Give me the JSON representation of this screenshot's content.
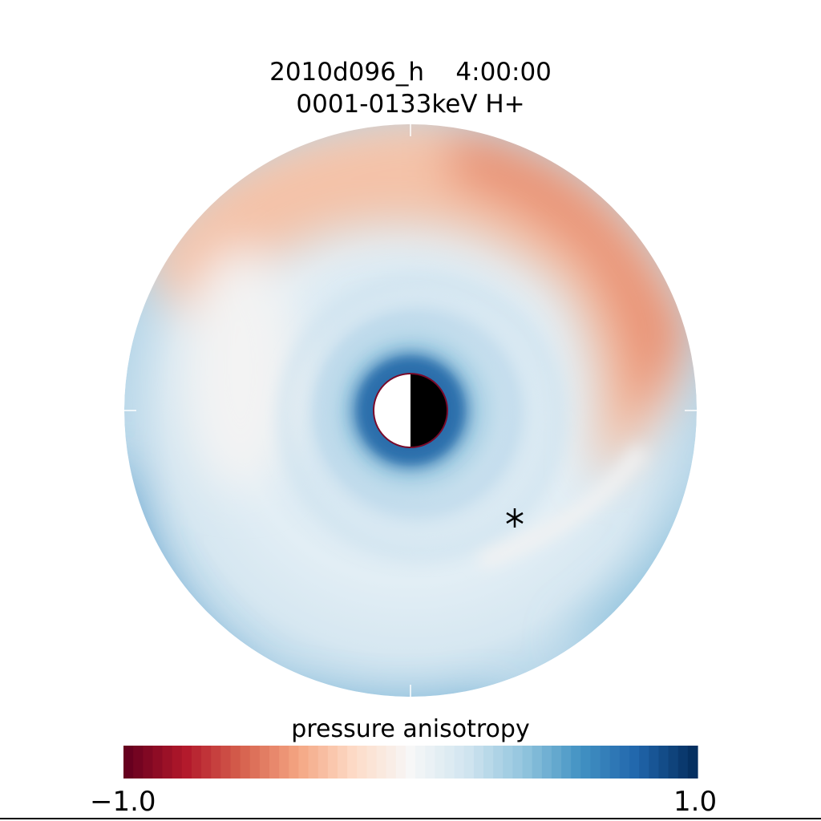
{
  "chart_data": {
    "type": "heatmap",
    "projection": "polar",
    "title_line1": "2010d096_h    4:00:00",
    "title_line2": "0001-0133keV H+",
    "colorbar": {
      "label": "pressure anisotropy",
      "min_label": "−1.0",
      "max_label": "1.0",
      "range": [
        -1.0,
        1.0
      ],
      "colormap": "RdBu",
      "levels": 59
    },
    "regions": [
      {
        "location": "dusk/top-right sector",
        "value_approx": -0.35
      },
      {
        "location": "top-left sector",
        "value_approx": -0.15
      },
      {
        "location": "inner ring",
        "value_approx": 0.2
      },
      {
        "location": "near Earth",
        "value_approx": 0.6
      },
      {
        "location": "bottom-left edge",
        "value_approx": 0.65
      }
    ],
    "marker": "asterisk",
    "earth": {
      "day_side": "left",
      "night_side": "right"
    }
  },
  "colors": {
    "dark_red": "#67001f",
    "white": "#f7f7f7",
    "dark_blue": "#053061"
  }
}
